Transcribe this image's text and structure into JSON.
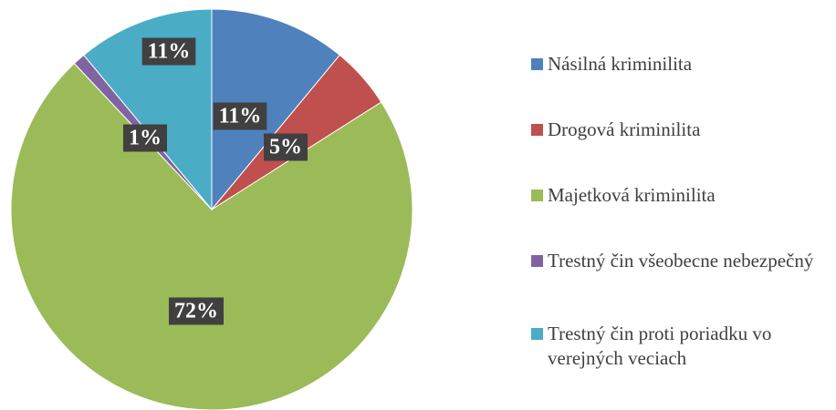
{
  "chart_data": {
    "type": "pie",
    "categories": [
      "Násilná kriminilita",
      "Drogová kriminilita",
      "Majetková kriminilita",
      "Trestný čin všeobecne nebezpečný",
      "Trestný čin proti poriadku vo verejných veciach"
    ],
    "values": [
      11,
      5,
      72,
      1,
      11
    ],
    "value_labels": [
      "11%",
      "5%",
      "72%",
      "1%",
      "11%"
    ],
    "colors": [
      "#4f81bd",
      "#c0504d",
      "#9bbb59",
      "#8064a2",
      "#4bacc6"
    ],
    "legend": "right"
  }
}
